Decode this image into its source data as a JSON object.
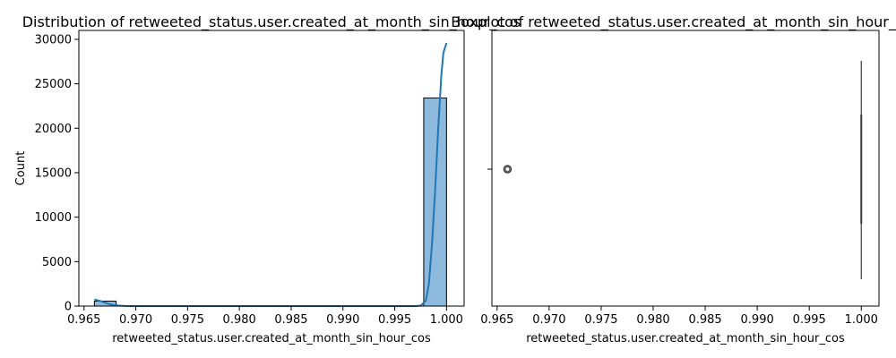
{
  "chart_data": [
    {
      "type": "bar",
      "subtype": "histogram_with_kde",
      "title": "Distribution of retweeted_status.user.created_at_month_sin_hour_cos",
      "xlabel": "retweeted_status.user.created_at_month_sin_hour_cos",
      "ylabel": "Count",
      "xlim": [
        0.9645,
        1.0017
      ],
      "ylim": [
        0,
        31000
      ],
      "x_ticks": [
        0.965,
        0.97,
        0.975,
        0.98,
        0.985,
        0.99,
        0.995,
        1.0
      ],
      "x_tick_labels": [
        "0.965",
        "0.970",
        "0.975",
        "0.980",
        "0.985",
        "0.990",
        "0.995",
        "1.000"
      ],
      "y_ticks": [
        0,
        5000,
        10000,
        15000,
        20000,
        25000,
        30000
      ],
      "y_tick_labels": [
        "0",
        "5000",
        "10000",
        "15000",
        "20000",
        "25000",
        "30000"
      ],
      "bins": [
        {
          "x0": 0.966,
          "x1": 0.9681,
          "count": 560
        },
        {
          "x0": 0.9978,
          "x1": 1.0,
          "count": 23400
        }
      ],
      "kde": {
        "x": [
          0.966,
          0.9665,
          0.967,
          0.9675,
          0.968,
          0.969,
          0.97,
          0.975,
          0.98,
          0.985,
          0.99,
          0.995,
          0.997,
          0.9975,
          0.998,
          0.9983,
          0.9986,
          0.9989,
          0.9992,
          0.9995,
          0.9997,
          1.0
        ],
        "y": [
          750,
          600,
          400,
          200,
          80,
          10,
          0,
          0,
          0,
          0,
          0,
          0,
          0,
          50,
          600,
          2500,
          7000,
          13000,
          20000,
          26000,
          28500,
          29600
        ]
      },
      "colors": {
        "bar": "#8db9dc",
        "bar_edge": "#000000",
        "kde": "#1f77b4"
      }
    },
    {
      "type": "box",
      "title": "Boxplot of retweeted_status.user.created_at_month_sin_hour_cos",
      "xlabel": "retweeted_status.user.created_at_month_sin_hour_cos",
      "xlim": [
        0.9645,
        1.0017
      ],
      "x_ticks": [
        0.965,
        0.97,
        0.975,
        0.98,
        0.985,
        0.99,
        0.995,
        1.0
      ],
      "x_tick_labels": [
        "0.965",
        "0.970",
        "0.975",
        "0.980",
        "0.985",
        "0.990",
        "0.995",
        "1.000"
      ],
      "box": {
        "q1": 1.0,
        "median": 1.0,
        "q3": 1.0,
        "whisker_low": 1.0,
        "whisker_high": 1.0
      },
      "outliers": [
        0.966
      ],
      "colors": {
        "box": "#3a3a3a",
        "outlier": "#3a3a3a"
      }
    }
  ]
}
